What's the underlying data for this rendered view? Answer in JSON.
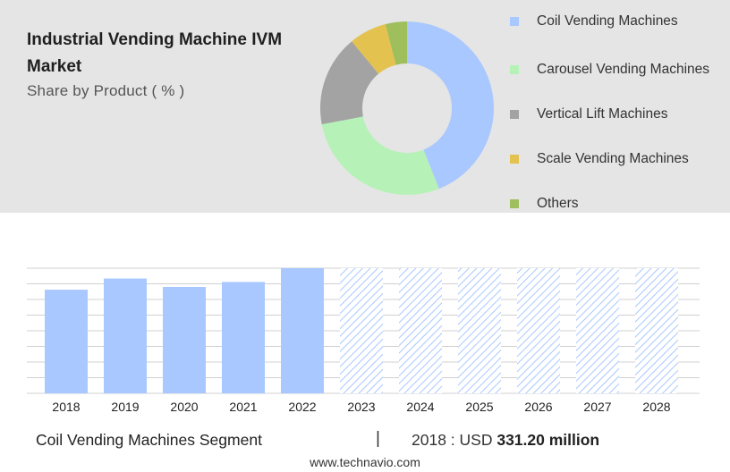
{
  "header": {
    "title": "Industrial Vending Machine IVM Market",
    "subtitle": "Share by Product ( % )"
  },
  "colors": {
    "panel_bg": "#e5e5e5",
    "bar_actual": "#a9c8ff",
    "bar_forecast_hatch": "#a9c8ff",
    "grid": "#cccccc"
  },
  "chart_data": [
    {
      "type": "pie",
      "variant": "donut",
      "categories": [
        "Coil Vending Machines",
        "Carousel Vending Machines",
        "Vertical Lift Machines",
        "Scale Vending Machines",
        "Others"
      ],
      "values": [
        44,
        28,
        17,
        7,
        4
      ],
      "colors": [
        "#a9c8ff",
        "#b6f2b8",
        "#a3a3a3",
        "#e4c24f",
        "#9fbe5c"
      ],
      "legend_position": "right"
    },
    {
      "type": "bar",
      "categories": [
        "2018",
        "2019",
        "2020",
        "2021",
        "2022",
        "2023",
        "2024",
        "2025",
        "2026",
        "2027",
        "2028"
      ],
      "values": [
        331.2,
        367,
        340,
        356,
        400,
        null,
        null,
        null,
        null,
        null,
        null
      ],
      "forecast_categories": [
        "2023",
        "2024",
        "2025",
        "2026",
        "2027",
        "2028"
      ],
      "forecast_style": "hatched placeholder",
      "ylim": [
        0,
        400
      ],
      "grid": true,
      "y_ticks_shown": false
    }
  ],
  "footer": {
    "segment": "Coil Vending Machines Segment",
    "divider": "|",
    "year_label": "2018 : USD",
    "year_value": "331.20 million",
    "source": "www.technavio.com"
  }
}
